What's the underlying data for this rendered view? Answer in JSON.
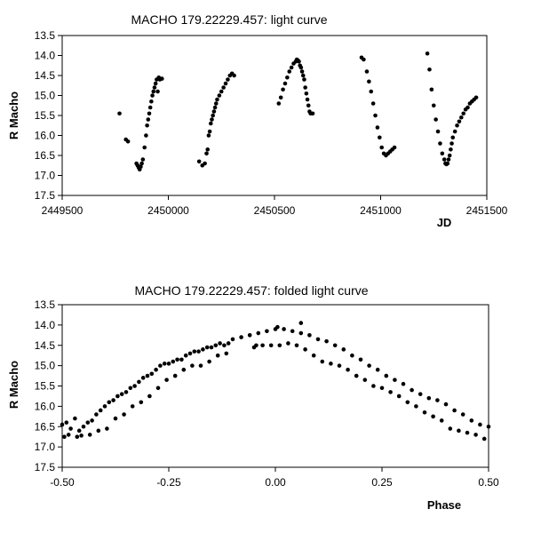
{
  "colors": {
    "points": "#000000",
    "axis": "#000000",
    "background": "#ffffff"
  },
  "chart_data": [
    {
      "type": "scatter",
      "title": "MACHO 179.22229.457: light curve",
      "xlabel": "JD",
      "ylabel": "R Macho",
      "xlim": [
        2449500,
        2451500
      ],
      "ylim": [
        17.5,
        13.5
      ],
      "y_inverted": true,
      "grid": false,
      "x_ticks": [
        "2449500",
        "2450000",
        "2450500",
        "2451000",
        "2451500"
      ],
      "y_ticks": [
        "13.5",
        "14.0",
        "14.5",
        "15.0",
        "15.5",
        "16.0",
        "16.5",
        "17.0",
        "17.5"
      ],
      "series": [
        {
          "x": [
            2449770,
            2449800,
            2449810,
            2449850,
            2449855,
            2449860,
            2449865,
            2449870,
            2449875,
            2449880,
            2449888,
            2449895,
            2449900,
            2449905,
            2449910,
            2449915,
            2449920,
            2449925,
            2449930,
            2449935,
            2449940,
            2449945,
            2449950,
            2449955,
            2449960,
            2449970,
            2450145,
            2450160,
            2450172,
            2450180,
            2450185,
            2450190,
            2450195,
            2450200,
            2450205,
            2450210,
            2450215,
            2450220,
            2450225,
            2450230,
            2450240,
            2450250,
            2450260,
            2450270,
            2450280,
            2450290,
            2450300,
            2450310,
            2450520,
            2450530,
            2450540,
            2450550,
            2450560,
            2450570,
            2450580,
            2450590,
            2450600,
            2450605,
            2450610,
            2450615,
            2450620,
            2450625,
            2450630,
            2450635,
            2450640,
            2450645,
            2450650,
            2450655,
            2450660,
            2450665,
            2450670,
            2450680,
            2450910,
            2450920,
            2450935,
            2450945,
            2450955,
            2450965,
            2450975,
            2450985,
            2450995,
            2451005,
            2451015,
            2451025,
            2451035,
            2451045,
            2451055,
            2451065,
            2451220,
            2451230,
            2451240,
            2451250,
            2451260,
            2451270,
            2451280,
            2451290,
            2451300,
            2451305,
            2451310,
            2451315,
            2451320,
            2451325,
            2451330,
            2451335,
            2451340,
            2451350,
            2451360,
            2451370,
            2451380,
            2451390,
            2451400,
            2451410,
            2451420,
            2451430,
            2451440,
            2451450
          ],
          "y": [
            15.45,
            16.1,
            16.15,
            16.7,
            16.75,
            16.8,
            16.85,
            16.78,
            16.7,
            16.6,
            16.3,
            16.0,
            15.75,
            15.6,
            15.45,
            15.3,
            15.15,
            15.0,
            14.9,
            14.8,
            14.7,
            14.6,
            14.9,
            14.55,
            14.6,
            14.58,
            16.65,
            16.75,
            16.7,
            16.45,
            16.35,
            16.0,
            15.9,
            15.7,
            15.6,
            15.5,
            15.4,
            15.3,
            15.2,
            15.1,
            15.0,
            14.9,
            14.8,
            14.7,
            14.6,
            14.5,
            14.45,
            14.5,
            15.2,
            15.05,
            14.85,
            14.7,
            14.55,
            14.4,
            14.3,
            14.2,
            14.15,
            14.1,
            14.12,
            14.15,
            14.25,
            14.3,
            14.4,
            14.5,
            14.6,
            14.8,
            14.95,
            15.1,
            15.25,
            15.4,
            15.45,
            15.45,
            14.05,
            14.1,
            14.4,
            14.65,
            14.9,
            15.2,
            15.5,
            15.8,
            16.05,
            16.3,
            16.45,
            16.5,
            16.45,
            16.4,
            16.35,
            16.3,
            13.95,
            14.35,
            14.85,
            15.25,
            15.6,
            15.9,
            16.2,
            16.45,
            16.6,
            16.7,
            16.72,
            16.7,
            16.6,
            16.5,
            16.35,
            16.2,
            16.05,
            15.9,
            15.75,
            15.65,
            15.55,
            15.45,
            15.35,
            15.3,
            15.2,
            15.15,
            15.1,
            15.05
          ]
        }
      ]
    },
    {
      "type": "scatter",
      "title": "MACHO 179.22229.457: folded light curve",
      "xlabel": "Phase",
      "ylabel": "R Macho",
      "xlim": [
        -0.5,
        0.5
      ],
      "ylim": [
        17.5,
        13.5
      ],
      "y_inverted": true,
      "grid": false,
      "x_ticks": [
        "-0.50",
        "-0.25",
        "0.00",
        "0.25",
        "0.50"
      ],
      "y_ticks": [
        "13.5",
        "14.0",
        "14.5",
        "15.0",
        "15.5",
        "16.0",
        "16.5",
        "17.0",
        "17.5"
      ],
      "series": [
        {
          "x": [
            -0.5,
            -0.49,
            -0.48,
            -0.47,
            -0.46,
            -0.45,
            -0.44,
            -0.43,
            -0.42,
            -0.41,
            -0.4,
            -0.39,
            -0.38,
            -0.37,
            -0.36,
            -0.35,
            -0.34,
            -0.33,
            -0.32,
            -0.31,
            -0.3,
            -0.29,
            -0.28,
            -0.27,
            -0.26,
            -0.25,
            -0.24,
            -0.23,
            -0.22,
            -0.21,
            -0.2,
            -0.19,
            -0.18,
            -0.17,
            -0.16,
            -0.15,
            -0.14,
            -0.13,
            -0.12,
            -0.11,
            -0.1,
            -0.08,
            -0.06,
            -0.04,
            -0.02,
            0.0,
            0.02,
            0.04,
            0.06,
            0.08,
            0.1,
            0.12,
            0.14,
            0.16,
            0.18,
            0.2,
            0.22,
            0.24,
            0.26,
            0.28,
            0.3,
            0.32,
            0.34,
            0.36,
            0.38,
            0.4,
            0.42,
            0.44,
            0.46,
            0.48,
            0.5,
            -0.495,
            -0.485,
            -0.465,
            -0.455,
            -0.435,
            -0.415,
            -0.395,
            -0.375,
            -0.355,
            -0.335,
            -0.315,
            -0.295,
            -0.275,
            -0.255,
            -0.235,
            -0.215,
            -0.195,
            -0.175,
            -0.155,
            -0.135,
            -0.115,
            -0.05,
            -0.03,
            -0.01,
            0.01,
            0.03,
            0.05,
            0.07,
            0.09,
            0.11,
            0.13,
            0.15,
            0.17,
            0.19,
            0.21,
            0.23,
            0.25,
            0.27,
            0.29,
            0.31,
            0.33,
            0.35,
            0.37,
            0.39,
            0.41,
            0.43,
            0.45,
            0.47,
            0.49,
            0.06,
            -0.045,
            0.005
          ],
          "y": [
            16.45,
            16.4,
            16.55,
            16.3,
            16.6,
            16.5,
            16.4,
            16.35,
            16.2,
            16.1,
            16.0,
            15.9,
            15.85,
            15.75,
            15.7,
            15.65,
            15.55,
            15.5,
            15.4,
            15.3,
            15.25,
            15.2,
            15.1,
            15.0,
            14.95,
            14.95,
            14.9,
            14.85,
            14.85,
            14.75,
            14.7,
            14.65,
            14.65,
            14.6,
            14.55,
            14.55,
            14.5,
            14.45,
            14.5,
            14.45,
            14.35,
            14.3,
            14.25,
            14.2,
            14.15,
            14.1,
            14.1,
            14.15,
            14.2,
            14.25,
            14.35,
            14.4,
            14.5,
            14.6,
            14.75,
            14.85,
            15.0,
            15.1,
            15.25,
            15.35,
            15.45,
            15.6,
            15.7,
            15.8,
            15.85,
            15.95,
            16.1,
            16.2,
            16.35,
            16.45,
            16.5,
            16.75,
            16.7,
            16.75,
            16.72,
            16.7,
            16.6,
            16.55,
            16.3,
            16.2,
            16.0,
            15.9,
            15.75,
            15.55,
            15.35,
            15.25,
            15.1,
            15.0,
            15.0,
            14.9,
            14.75,
            14.7,
            14.55,
            14.5,
            14.5,
            14.5,
            14.45,
            14.5,
            14.6,
            14.75,
            14.9,
            14.95,
            15.0,
            15.1,
            15.25,
            15.35,
            15.5,
            15.55,
            15.65,
            15.75,
            15.9,
            16.0,
            16.15,
            16.25,
            16.35,
            16.55,
            16.6,
            16.65,
            16.7,
            16.8,
            13.95,
            14.5,
            14.05
          ]
        }
      ]
    }
  ]
}
